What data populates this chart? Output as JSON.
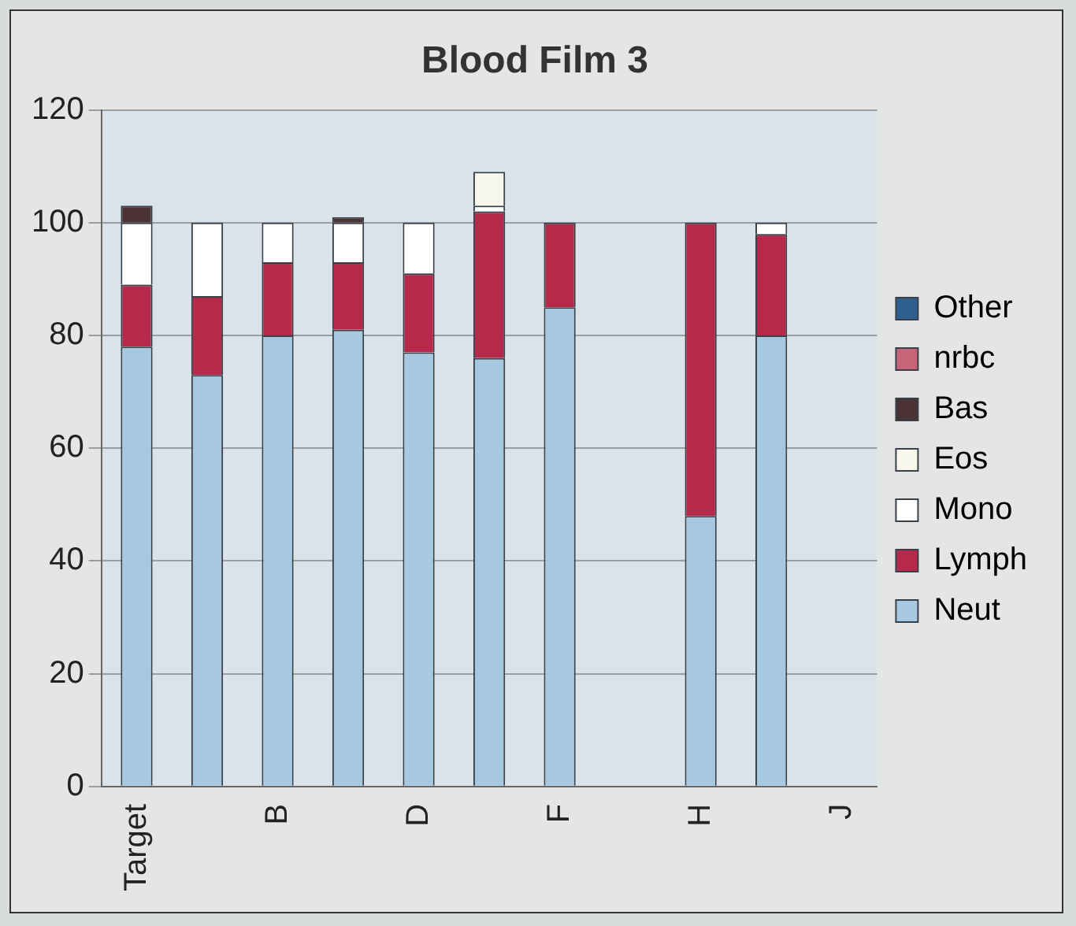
{
  "chart_data": {
    "type": "bar",
    "title": "Blood Film 3",
    "stacked": true,
    "grid": "y",
    "legend": "right",
    "categories": [
      "Target",
      null,
      "B",
      null,
      "D",
      null,
      "F",
      null,
      "H",
      null,
      "J"
    ],
    "ylim": [
      0,
      120
    ],
    "yticks": [
      0,
      20,
      40,
      60,
      80,
      100,
      120
    ],
    "series": [
      {
        "name": "Neut",
        "color": "#a6c8e0",
        "values": [
          78,
          73,
          80,
          81,
          77,
          76,
          85,
          null,
          48,
          80,
          null
        ]
      },
      {
        "name": "Lymph",
        "color": "#b5294a",
        "values": [
          11,
          14,
          13,
          12,
          14,
          26,
          15,
          null,
          52,
          18,
          null
        ]
      },
      {
        "name": "Mono",
        "color": "#ffffff",
        "values": [
          11,
          13,
          7,
          7,
          9,
          1,
          null,
          null,
          null,
          2,
          null
        ]
      },
      {
        "name": "Eos",
        "color": "#f7f7ee",
        "values": [
          null,
          null,
          null,
          null,
          null,
          6,
          null,
          null,
          null,
          null,
          null
        ]
      },
      {
        "name": "Bas",
        "color": "#4a3236",
        "values": [
          3,
          null,
          null,
          1,
          null,
          null,
          null,
          null,
          null,
          null,
          null
        ]
      },
      {
        "name": "nrbc",
        "color": "#c86478",
        "values": [
          null,
          null,
          null,
          null,
          null,
          null,
          null,
          null,
          null,
          null,
          null
        ]
      },
      {
        "name": "Other",
        "color": "#2f5f8f",
        "values": [
          null,
          null,
          null,
          null,
          null,
          null,
          null,
          null,
          null,
          null,
          null
        ]
      }
    ]
  }
}
